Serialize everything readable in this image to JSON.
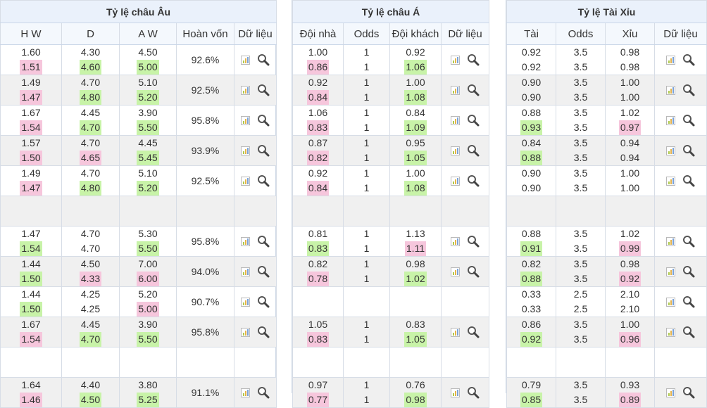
{
  "panels": {
    "eu": {
      "title": "Tỷ lệ châu Âu",
      "headers": [
        "H W",
        "D",
        "A W",
        "Hoàn vốn",
        "Dữ liệu"
      ],
      "rows": [
        {
          "bg": "white",
          "hw": [
            "1.60",
            "1.51"
          ],
          "hw_hl": [
            "",
            "pink"
          ],
          "d": [
            "4.30",
            "4.60"
          ],
          "d_hl": [
            "",
            "green"
          ],
          "aw": [
            "4.50",
            "5.00"
          ],
          "aw_hl": [
            "",
            "green"
          ],
          "ret": "92.6%",
          "icons": true
        },
        {
          "bg": "gray",
          "hw": [
            "1.49",
            "1.47"
          ],
          "hw_hl": [
            "",
            "pink"
          ],
          "d": [
            "4.70",
            "4.80"
          ],
          "d_hl": [
            "",
            "green"
          ],
          "aw": [
            "5.10",
            "5.20"
          ],
          "aw_hl": [
            "",
            "green"
          ],
          "ret": "92.5%",
          "icons": true
        },
        {
          "bg": "white",
          "hw": [
            "1.67",
            "1.54"
          ],
          "hw_hl": [
            "",
            "pink"
          ],
          "d": [
            "4.45",
            "4.70"
          ],
          "d_hl": [
            "",
            "green"
          ],
          "aw": [
            "3.90",
            "5.50"
          ],
          "aw_hl": [
            "",
            "green"
          ],
          "ret": "95.8%",
          "icons": true
        },
        {
          "bg": "gray",
          "hw": [
            "1.57",
            "1.50"
          ],
          "hw_hl": [
            "",
            "pink"
          ],
          "d": [
            "4.70",
            "4.65"
          ],
          "d_hl": [
            "",
            "pink"
          ],
          "aw": [
            "4.45",
            "5.45"
          ],
          "aw_hl": [
            "",
            "green"
          ],
          "ret": "93.9%",
          "icons": true
        },
        {
          "bg": "white",
          "hw": [
            "1.49",
            "1.47"
          ],
          "hw_hl": [
            "",
            "pink"
          ],
          "d": [
            "4.70",
            "4.80"
          ],
          "d_hl": [
            "",
            "green"
          ],
          "aw": [
            "5.10",
            "5.20"
          ],
          "aw_hl": [
            "",
            "green"
          ],
          "ret": "92.5%",
          "icons": true
        },
        {
          "bg": "gray",
          "hw": [
            "",
            ""
          ],
          "hw_hl": [
            "",
            ""
          ],
          "d": [
            "",
            ""
          ],
          "d_hl": [
            "",
            ""
          ],
          "aw": [
            "",
            ""
          ],
          "aw_hl": [
            "",
            ""
          ],
          "ret": "",
          "icons": false
        },
        {
          "bg": "white",
          "hw": [
            "1.47",
            "1.54"
          ],
          "hw_hl": [
            "",
            "green"
          ],
          "d": [
            "4.70",
            "4.70"
          ],
          "d_hl": [
            "",
            ""
          ],
          "aw": [
            "5.30",
            "5.50"
          ],
          "aw_hl": [
            "",
            "green"
          ],
          "ret": "95.8%",
          "icons": true
        },
        {
          "bg": "gray",
          "hw": [
            "1.44",
            "1.50"
          ],
          "hw_hl": [
            "",
            "green"
          ],
          "d": [
            "4.50",
            "4.33"
          ],
          "d_hl": [
            "",
            "pink"
          ],
          "aw": [
            "7.00",
            "6.00"
          ],
          "aw_hl": [
            "",
            "pink"
          ],
          "ret": "94.0%",
          "icons": true
        },
        {
          "bg": "white",
          "hw": [
            "1.44",
            "1.50"
          ],
          "hw_hl": [
            "",
            "green"
          ],
          "d": [
            "4.25",
            "4.25"
          ],
          "d_hl": [
            "",
            ""
          ],
          "aw": [
            "5.20",
            "5.00"
          ],
          "aw_hl": [
            "",
            "pink"
          ],
          "ret": "90.7%",
          "icons": true
        },
        {
          "bg": "gray",
          "hw": [
            "1.67",
            "1.54"
          ],
          "hw_hl": [
            "",
            "pink"
          ],
          "d": [
            "4.45",
            "4.70"
          ],
          "d_hl": [
            "",
            "green"
          ],
          "aw": [
            "3.90",
            "5.50"
          ],
          "aw_hl": [
            "",
            "green"
          ],
          "ret": "95.8%",
          "icons": true
        },
        {
          "bg": "white",
          "hw": [
            "",
            ""
          ],
          "hw_hl": [
            "",
            ""
          ],
          "d": [
            "",
            ""
          ],
          "d_hl": [
            "",
            ""
          ],
          "aw": [
            "",
            ""
          ],
          "aw_hl": [
            "",
            ""
          ],
          "ret": "",
          "icons": false
        },
        {
          "bg": "gray",
          "hw": [
            "1.64",
            "1.46"
          ],
          "hw_hl": [
            "",
            "pink"
          ],
          "d": [
            "4.40",
            "4.50"
          ],
          "d_hl": [
            "",
            "green"
          ],
          "aw": [
            "3.80",
            "5.25"
          ],
          "aw_hl": [
            "",
            "green"
          ],
          "ret": "91.1%",
          "icons": true
        }
      ]
    },
    "as": {
      "title": "Tỷ lệ châu Á",
      "headers": [
        "Đội nhà",
        "Odds",
        "Đội khách",
        "Dữ liệu"
      ],
      "rows": [
        {
          "bg": "white",
          "h": [
            "1.00",
            "0.86"
          ],
          "h_hl": [
            "",
            "pink"
          ],
          "o": [
            "1",
            "1"
          ],
          "a": [
            "0.92",
            "1.06"
          ],
          "a_hl": [
            "",
            "green"
          ],
          "icons": true
        },
        {
          "bg": "gray",
          "h": [
            "0.92",
            "0.84"
          ],
          "h_hl": [
            "",
            "pink"
          ],
          "o": [
            "1",
            "1"
          ],
          "a": [
            "1.00",
            "1.08"
          ],
          "a_hl": [
            "",
            "green"
          ],
          "icons": true
        },
        {
          "bg": "white",
          "h": [
            "1.06",
            "0.83"
          ],
          "h_hl": [
            "",
            "pink"
          ],
          "o": [
            "1",
            "1"
          ],
          "a": [
            "0.84",
            "1.09"
          ],
          "a_hl": [
            "",
            "green"
          ],
          "icons": true
        },
        {
          "bg": "gray",
          "h": [
            "0.87",
            "0.82"
          ],
          "h_hl": [
            "",
            "pink"
          ],
          "o": [
            "1",
            "1"
          ],
          "a": [
            "0.95",
            "1.05"
          ],
          "a_hl": [
            "",
            "green"
          ],
          "icons": true
        },
        {
          "bg": "white",
          "h": [
            "0.92",
            "0.84"
          ],
          "h_hl": [
            "",
            "pink"
          ],
          "o": [
            "1",
            "1"
          ],
          "a": [
            "1.00",
            "1.08"
          ],
          "a_hl": [
            "",
            "green"
          ],
          "icons": true
        },
        {
          "bg": "gray",
          "h": [
            "",
            ""
          ],
          "h_hl": [
            "",
            ""
          ],
          "o": [
            "",
            ""
          ],
          "a": [
            "",
            ""
          ],
          "a_hl": [
            "",
            ""
          ],
          "icons": false
        },
        {
          "bg": "white",
          "h": [
            "0.81",
            "0.83"
          ],
          "h_hl": [
            "",
            "green"
          ],
          "o": [
            "1",
            "1"
          ],
          "a": [
            "1.13",
            "1.11"
          ],
          "a_hl": [
            "",
            "pink"
          ],
          "icons": true
        },
        {
          "bg": "gray",
          "h": [
            "0.82",
            "0.78"
          ],
          "h_hl": [
            "",
            "pink"
          ],
          "o": [
            "1",
            "1"
          ],
          "a": [
            "0.98",
            "1.02"
          ],
          "a_hl": [
            "",
            "green"
          ],
          "icons": true
        },
        {
          "bg": "white",
          "h": [
            "",
            ""
          ],
          "h_hl": [
            "",
            ""
          ],
          "o": [
            "",
            ""
          ],
          "a": [
            "",
            ""
          ],
          "a_hl": [
            "",
            ""
          ],
          "icons": false
        },
        {
          "bg": "gray",
          "h": [
            "1.05",
            "0.83"
          ],
          "h_hl": [
            "",
            "pink"
          ],
          "o": [
            "1",
            "1"
          ],
          "a": [
            "0.83",
            "1.05"
          ],
          "a_hl": [
            "",
            "green"
          ],
          "icons": true
        },
        {
          "bg": "white",
          "h": [
            "",
            ""
          ],
          "h_hl": [
            "",
            ""
          ],
          "o": [
            "",
            ""
          ],
          "a": [
            "",
            ""
          ],
          "a_hl": [
            "",
            ""
          ],
          "icons": false
        },
        {
          "bg": "gray",
          "h": [
            "0.97",
            "0.77"
          ],
          "h_hl": [
            "",
            "pink"
          ],
          "o": [
            "1",
            "1"
          ],
          "a": [
            "0.76",
            "0.98"
          ],
          "a_hl": [
            "",
            "green"
          ],
          "icons": true
        }
      ]
    },
    "ou": {
      "title": "Tỷ lệ Tài Xỉu",
      "headers": [
        "Tài",
        "Odds",
        "Xỉu",
        "Dữ liệu"
      ],
      "rows": [
        {
          "bg": "white",
          "t": [
            "0.92",
            "0.92"
          ],
          "t_hl": [
            "",
            ""
          ],
          "o": [
            "3.5",
            "3.5"
          ],
          "x": [
            "0.98",
            "0.98"
          ],
          "x_hl": [
            "",
            ""
          ],
          "icons": true
        },
        {
          "bg": "gray",
          "t": [
            "0.90",
            "0.90"
          ],
          "t_hl": [
            "",
            ""
          ],
          "o": [
            "3.5",
            "3.5"
          ],
          "x": [
            "1.00",
            "1.00"
          ],
          "x_hl": [
            "",
            ""
          ],
          "icons": true
        },
        {
          "bg": "white",
          "t": [
            "0.88",
            "0.93"
          ],
          "t_hl": [
            "",
            "green"
          ],
          "o": [
            "3.5",
            "3.5"
          ],
          "x": [
            "1.02",
            "0.97"
          ],
          "x_hl": [
            "",
            "pink"
          ],
          "icons": true
        },
        {
          "bg": "gray",
          "t": [
            "0.84",
            "0.88"
          ],
          "t_hl": [
            "",
            "green"
          ],
          "o": [
            "3.5",
            "3.5"
          ],
          "x": [
            "0.94",
            "0.94"
          ],
          "x_hl": [
            "",
            ""
          ],
          "icons": true
        },
        {
          "bg": "white",
          "t": [
            "0.90",
            "0.90"
          ],
          "t_hl": [
            "",
            ""
          ],
          "o": [
            "3.5",
            "3.5"
          ],
          "x": [
            "1.00",
            "1.00"
          ],
          "x_hl": [
            "",
            ""
          ],
          "icons": true
        },
        {
          "bg": "gray",
          "t": [
            "",
            ""
          ],
          "t_hl": [
            "",
            ""
          ],
          "o": [
            "",
            ""
          ],
          "x": [
            "",
            ""
          ],
          "x_hl": [
            "",
            ""
          ],
          "icons": false
        },
        {
          "bg": "white",
          "t": [
            "0.88",
            "0.91"
          ],
          "t_hl": [
            "",
            "green"
          ],
          "o": [
            "3.5",
            "3.5"
          ],
          "x": [
            "1.02",
            "0.99"
          ],
          "x_hl": [
            "",
            "pink"
          ],
          "icons": true
        },
        {
          "bg": "gray",
          "t": [
            "0.82",
            "0.88"
          ],
          "t_hl": [
            "",
            "green"
          ],
          "o": [
            "3.5",
            "3.5"
          ],
          "x": [
            "0.98",
            "0.92"
          ],
          "x_hl": [
            "",
            "pink"
          ],
          "icons": true
        },
        {
          "bg": "white",
          "t": [
            "0.33",
            "0.33"
          ],
          "t_hl": [
            "",
            ""
          ],
          "o": [
            "2.5",
            "2.5"
          ],
          "x": [
            "2.10",
            "2.10"
          ],
          "x_hl": [
            "",
            ""
          ],
          "icons": true
        },
        {
          "bg": "gray",
          "t": [
            "0.86",
            "0.92"
          ],
          "t_hl": [
            "",
            "green"
          ],
          "o": [
            "3.5",
            "3.5"
          ],
          "x": [
            "1.00",
            "0.96"
          ],
          "x_hl": [
            "",
            "pink"
          ],
          "icons": true
        },
        {
          "bg": "white",
          "t": [
            "",
            ""
          ],
          "t_hl": [
            "",
            ""
          ],
          "o": [
            "",
            ""
          ],
          "x": [
            "",
            ""
          ],
          "x_hl": [
            "",
            ""
          ],
          "icons": false
        },
        {
          "bg": "gray",
          "t": [
            "0.79",
            "0.85"
          ],
          "t_hl": [
            "",
            "green"
          ],
          "o": [
            "3.5",
            "3.5"
          ],
          "x": [
            "0.93",
            "0.89"
          ],
          "x_hl": [
            "",
            "pink"
          ],
          "icons": true
        }
      ]
    }
  },
  "colors": {
    "pink": "#f6c6dc",
    "green": "#c8f3a8",
    "header_bg": "#eaf1fb",
    "row_gray": "#f0f0f0",
    "border": "#d7dde6"
  },
  "icons": {
    "chart": "bar-chart-icon",
    "search": "magnifier-icon"
  }
}
